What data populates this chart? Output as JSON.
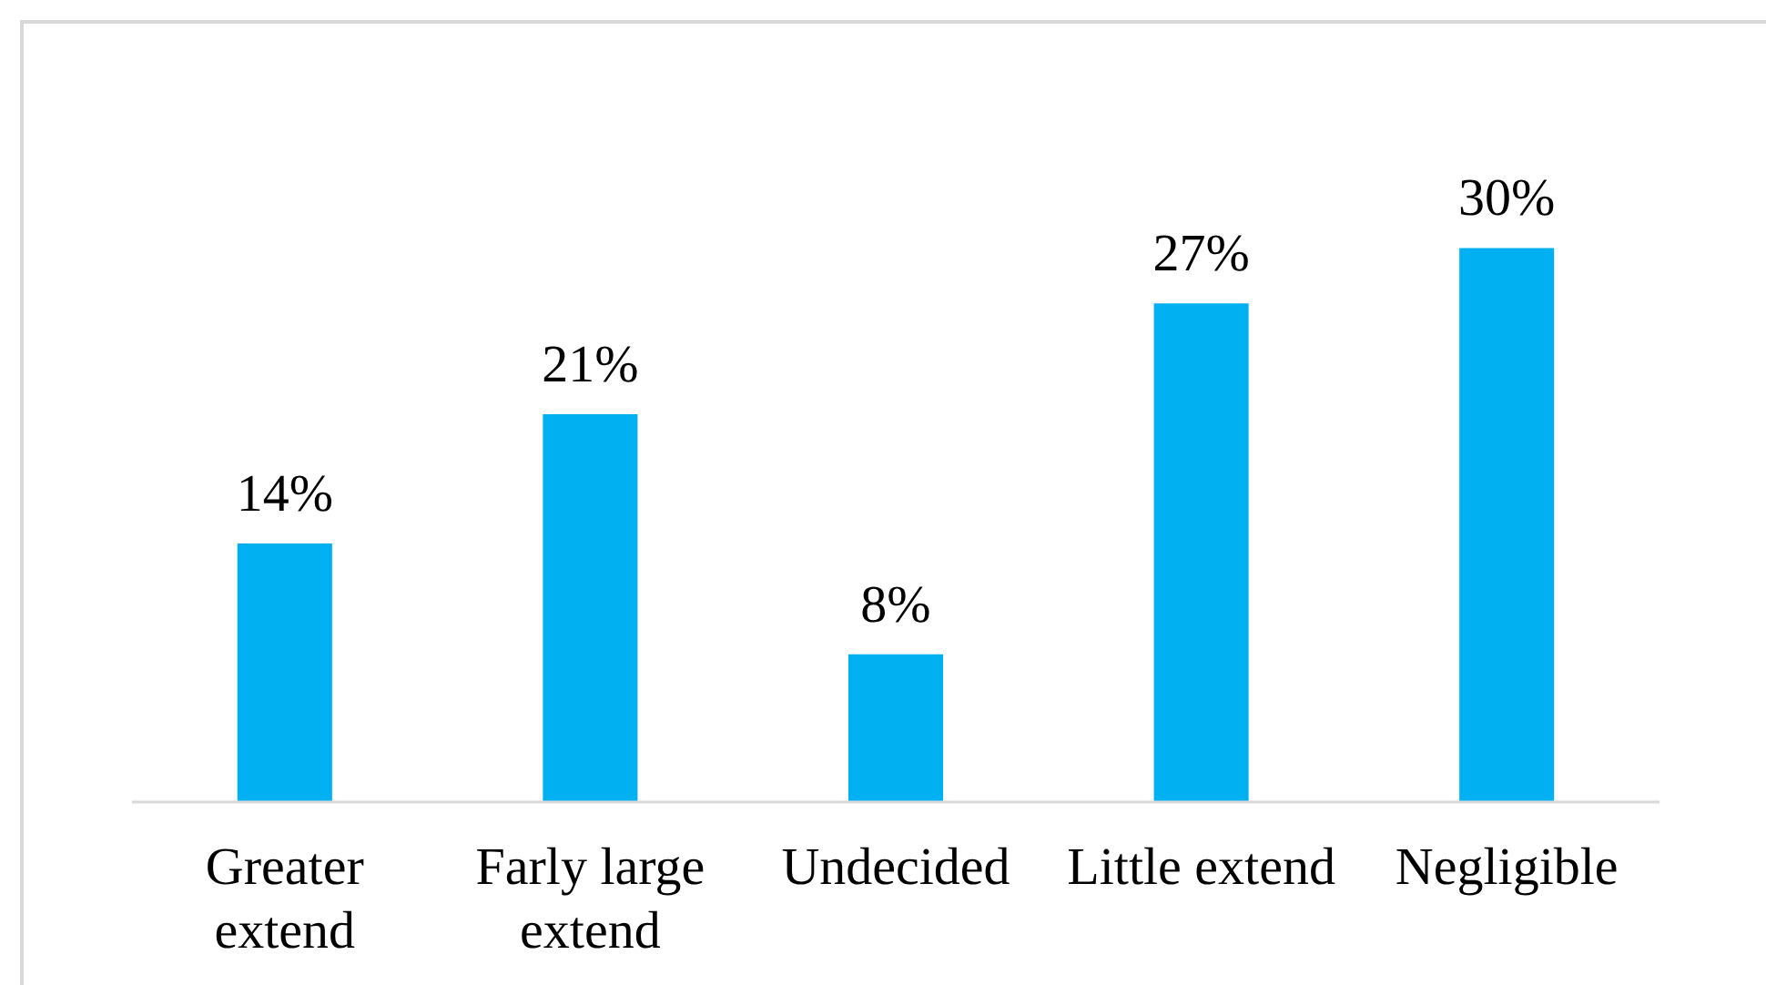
{
  "chart_data": {
    "type": "bar",
    "categories": [
      "Greater extend",
      "Farly large extend",
      "Undecided",
      "Little extend",
      "Negligible"
    ],
    "values": [
      14,
      21,
      8,
      27,
      30
    ],
    "value_labels": [
      "14%",
      "21%",
      "8%",
      "27%",
      "30%"
    ],
    "color": "#00b0f0",
    "tick_labels": "x"
  }
}
